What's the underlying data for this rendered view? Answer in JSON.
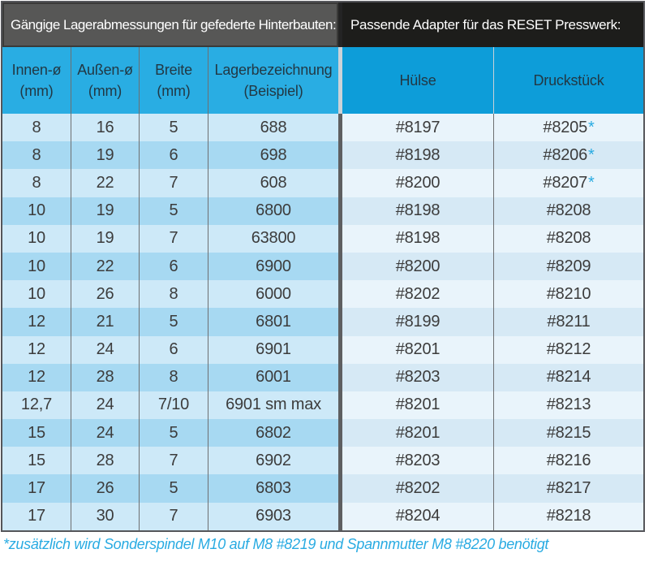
{
  "header": {
    "left_title": "Gängige Lagerabmessungen für gefederte Hinterbauten:",
    "right_title": "Passende Adapter für das RESET Presswerk:"
  },
  "columns": {
    "left": [
      {
        "label": "Innen-ø",
        "sub": "(mm)"
      },
      {
        "label": "Außen-ø",
        "sub": "(mm)"
      },
      {
        "label": "Breite",
        "sub": "(mm)"
      },
      {
        "label": "Lagerbezeichnung",
        "sub": "(Beispiel)"
      }
    ],
    "right": [
      {
        "label": "Hülse"
      },
      {
        "label": "Druckstück"
      }
    ]
  },
  "rows": [
    {
      "innen": "8",
      "aussen": "16",
      "breite": "5",
      "lager": "688",
      "huelse": "#8197",
      "druckstueck": "#8205",
      "star": "*"
    },
    {
      "innen": "8",
      "aussen": "19",
      "breite": "6",
      "lager": "698",
      "huelse": "#8198",
      "druckstueck": "#8206",
      "star": "*"
    },
    {
      "innen": "8",
      "aussen": "22",
      "breite": "7",
      "lager": "608",
      "huelse": "#8200",
      "druckstueck": "#8207",
      "star": "*"
    },
    {
      "innen": "10",
      "aussen": "19",
      "breite": "5",
      "lager": "6800",
      "huelse": "#8198",
      "druckstueck": "#8208",
      "star": ""
    },
    {
      "innen": "10",
      "aussen": "19",
      "breite": "7",
      "lager": "63800",
      "huelse": "#8198",
      "druckstueck": "#8208",
      "star": ""
    },
    {
      "innen": "10",
      "aussen": "22",
      "breite": "6",
      "lager": "6900",
      "huelse": "#8200",
      "druckstueck": "#8209",
      "star": ""
    },
    {
      "innen": "10",
      "aussen": "26",
      "breite": "8",
      "lager": "6000",
      "huelse": "#8202",
      "druckstueck": "#8210",
      "star": ""
    },
    {
      "innen": "12",
      "aussen": "21",
      "breite": "5",
      "lager": "6801",
      "huelse": "#8199",
      "druckstueck": "#8211",
      "star": ""
    },
    {
      "innen": "12",
      "aussen": "24",
      "breite": "6",
      "lager": "6901",
      "huelse": "#8201",
      "druckstueck": "#8212",
      "star": ""
    },
    {
      "innen": "12",
      "aussen": "28",
      "breite": "8",
      "lager": "6001",
      "huelse": "#8203",
      "druckstueck": "#8214",
      "star": ""
    },
    {
      "innen": "12,7",
      "aussen": "24",
      "breite": "7/10",
      "lager": "6901 sm max",
      "huelse": "#8201",
      "druckstueck": "#8213",
      "star": ""
    },
    {
      "innen": "15",
      "aussen": "24",
      "breite": "5",
      "lager": "6802",
      "huelse": "#8201",
      "druckstueck": "#8215",
      "star": ""
    },
    {
      "innen": "15",
      "aussen": "28",
      "breite": "7",
      "lager": "6902",
      "huelse": "#8203",
      "druckstueck": "#8216",
      "star": ""
    },
    {
      "innen": "17",
      "aussen": "26",
      "breite": "5",
      "lager": "6803",
      "huelse": "#8202",
      "druckstueck": "#8217",
      "star": ""
    },
    {
      "innen": "17",
      "aussen": "30",
      "breite": "7",
      "lager": "6903",
      "huelse": "#8204",
      "druckstueck": "#8218",
      "star": ""
    }
  ],
  "footnote": "*zusätzlich wird Sonderspindel M10 auf M8 #8219 und Spannmutter M8 #8220 benötigt",
  "colors": {
    "header_left_bg": "#575756",
    "header_right_bg": "#1d1d1b",
    "col_header_left_bg": "#29ade3",
    "col_header_right_bg": "#0d9dd9",
    "row_left_odd": "#cde9f8",
    "row_left_even": "#a7d9f2",
    "row_right_odd": "#e9f4fb",
    "row_right_even": "#d6e9f5",
    "accent_blue": "#29abe2",
    "grid_line": "#6e6f71"
  }
}
